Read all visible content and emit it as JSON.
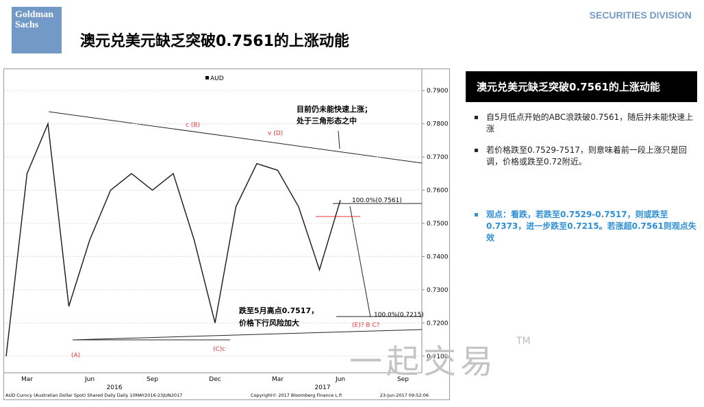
{
  "header": {
    "logo": "Goldman Sachs",
    "division": "SECURITIES DIVISION",
    "title": "澳元兑美元缺乏突破0.7561的上涨动能"
  },
  "chart_data": {
    "type": "line",
    "legend": "AUD",
    "categories": [
      null,
      "Mar",
      null,
      null,
      "Jun",
      null,
      null,
      "Sep",
      null,
      null,
      "Dec",
      null,
      null,
      "Mar",
      null,
      null,
      "Jun",
      null,
      null,
      "Sep"
    ],
    "year_labels": [
      "2016",
      "2017"
    ],
    "series": [
      {
        "name": "AUD",
        "color": "#222222",
        "values": [
          0.71,
          0.765,
          0.78,
          0.725,
          0.745,
          0.76,
          0.765,
          0.76,
          0.765,
          0.745,
          0.72,
          0.755,
          0.768,
          0.766,
          0.755,
          0.736,
          0.757,
          null,
          null,
          null
        ]
      }
    ],
    "ylim": [
      0.705,
      0.795
    ],
    "yticks": [
      {
        "value": 0.71,
        "label": "0.7100"
      },
      {
        "value": 0.72,
        "label": "0.7200"
      },
      {
        "value": 0.73,
        "label": "0.7300"
      },
      {
        "value": 0.74,
        "label": "0.7400"
      },
      {
        "value": 0.75,
        "label": "0.7500"
      },
      {
        "value": 0.76,
        "label": "0.7600"
      },
      {
        "value": 0.77,
        "label": "0.7700"
      },
      {
        "value": 0.78,
        "label": "0.7800"
      },
      {
        "value": 0.79,
        "label": "0.7900"
      }
    ],
    "grid": true,
    "annotations": [
      "目前仍未能快速上涨；",
      "处于三角形态之中",
      "跌至5月高点0.7517，",
      "价格下行风险加大",
      "100.0%(0.7561)",
      "100.0%(0.7215)",
      "(A)",
      "(C)c",
      "c (B)",
      "v (D)",
      "(E)? B C?"
    ],
    "footer": [
      "AUD Curncy (Australian Dollar Spot) Shared Daily  Daily 10MAY2016-23JUN2017",
      "Copyright© 2017 Bloomberg Finance L.P.",
      "23-Jun-2017 09:52:06"
    ]
  },
  "panel": {
    "title": "澳元兑美元缺乏突破0.7561的上涨动能",
    "bullets": [
      "自5月低点开始的ABC浪跌破0.7561，随后并未能快速上涨",
      "若价格跌至0.7529-7517，则意味着前一段上涨只是回调，价格或跌至0.72附近。",
      "观点：看跌，若跌至0.7529-0.7517，则或跌至0.7373，进一步跌至0.7215。若涨超0.7561则观点失效"
    ]
  },
  "watermark": "一起交易",
  "watermark_mark": "TM"
}
